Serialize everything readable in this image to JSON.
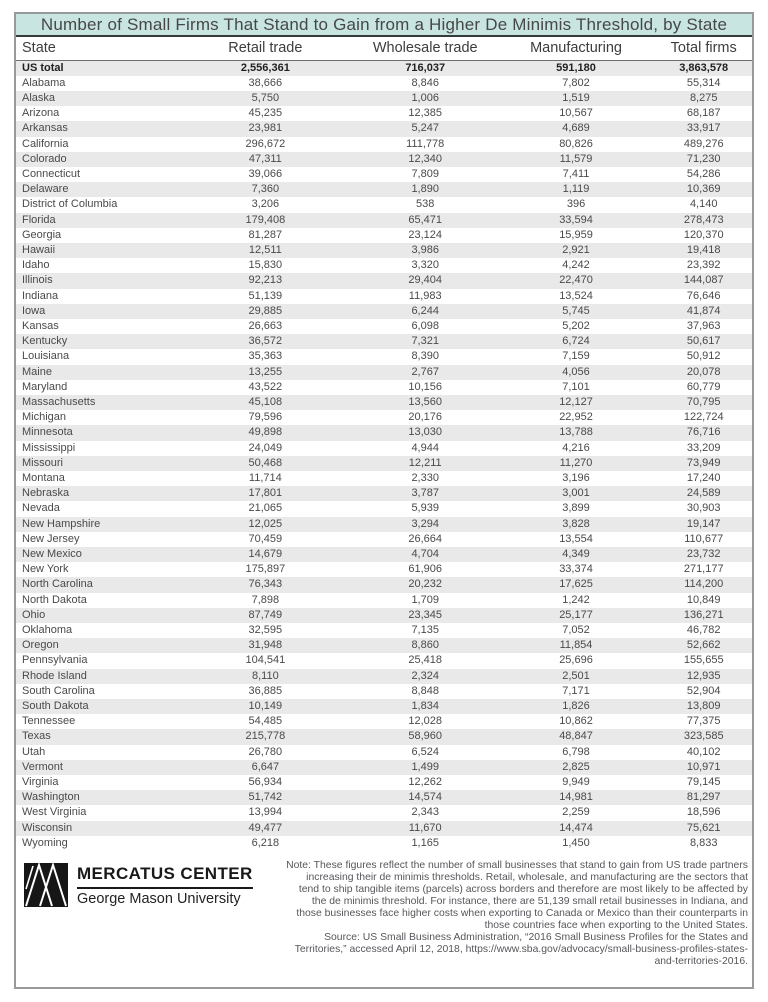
{
  "chart_data": {
    "type": "table",
    "title": "Number of Small Firms That Stand to Gain from a Higher De Minimis Threshold, by State",
    "columns": [
      "State",
      "Retail trade",
      "Wholesale trade",
      "Manufacturing",
      "Total firms"
    ],
    "rows": [
      [
        "US total",
        2556361,
        716037,
        591180,
        3863578
      ],
      [
        "Alabama",
        38666,
        8846,
        7802,
        55314
      ],
      [
        "Alaska",
        5750,
        1006,
        1519,
        8275
      ],
      [
        "Arizona",
        45235,
        12385,
        10567,
        68187
      ],
      [
        "Arkansas",
        23981,
        5247,
        4689,
        33917
      ],
      [
        "California",
        296672,
        111778,
        80826,
        489276
      ],
      [
        "Colorado",
        47311,
        12340,
        11579,
        71230
      ],
      [
        "Connecticut",
        39066,
        7809,
        7411,
        54286
      ],
      [
        "Delaware",
        7360,
        1890,
        1119,
        10369
      ],
      [
        "District of Columbia",
        3206,
        538,
        396,
        4140
      ],
      [
        "Florida",
        179408,
        65471,
        33594,
        278473
      ],
      [
        "Georgia",
        81287,
        23124,
        15959,
        120370
      ],
      [
        "Hawaii",
        12511,
        3986,
        2921,
        19418
      ],
      [
        "Idaho",
        15830,
        3320,
        4242,
        23392
      ],
      [
        "Illinois",
        92213,
        29404,
        22470,
        144087
      ],
      [
        "Indiana",
        51139,
        11983,
        13524,
        76646
      ],
      [
        "Iowa",
        29885,
        6244,
        5745,
        41874
      ],
      [
        "Kansas",
        26663,
        6098,
        5202,
        37963
      ],
      [
        "Kentucky",
        36572,
        7321,
        6724,
        50617
      ],
      [
        "Louisiana",
        35363,
        8390,
        7159,
        50912
      ],
      [
        "Maine",
        13255,
        2767,
        4056,
        20078
      ],
      [
        "Maryland",
        43522,
        10156,
        7101,
        60779
      ],
      [
        "Massachusetts",
        45108,
        13560,
        12127,
        70795
      ],
      [
        "Michigan",
        79596,
        20176,
        22952,
        122724
      ],
      [
        "Minnesota",
        49898,
        13030,
        13788,
        76716
      ],
      [
        "Mississippi",
        24049,
        4944,
        4216,
        33209
      ],
      [
        "Missouri",
        50468,
        12211,
        11270,
        73949
      ],
      [
        "Montana",
        11714,
        2330,
        3196,
        17240
      ],
      [
        "Nebraska",
        17801,
        3787,
        3001,
        24589
      ],
      [
        "Nevada",
        21065,
        5939,
        3899,
        30903
      ],
      [
        "New Hampshire",
        12025,
        3294,
        3828,
        19147
      ],
      [
        "New Jersey",
        70459,
        26664,
        13554,
        110677
      ],
      [
        "New Mexico",
        14679,
        4704,
        4349,
        23732
      ],
      [
        "New York",
        175897,
        61906,
        33374,
        271177
      ],
      [
        "North Carolina",
        76343,
        20232,
        17625,
        114200
      ],
      [
        "North Dakota",
        7898,
        1709,
        1242,
        10849
      ],
      [
        "Ohio",
        87749,
        23345,
        25177,
        136271
      ],
      [
        "Oklahoma",
        32595,
        7135,
        7052,
        46782
      ],
      [
        "Oregon",
        31948,
        8860,
        11854,
        52662
      ],
      [
        "Pennsylvania",
        104541,
        25418,
        25696,
        155655
      ],
      [
        "Rhode Island",
        8110,
        2324,
        2501,
        12935
      ],
      [
        "South Carolina",
        36885,
        8848,
        7171,
        52904
      ],
      [
        "South Dakota",
        10149,
        1834,
        1826,
        13809
      ],
      [
        "Tennessee",
        54485,
        12028,
        10862,
        77375
      ],
      [
        "Texas",
        215778,
        58960,
        48847,
        323585
      ],
      [
        "Utah",
        26780,
        6524,
        6798,
        40102
      ],
      [
        "Vermont",
        6647,
        1499,
        2825,
        10971
      ],
      [
        "Virginia",
        56934,
        12262,
        9949,
        79145
      ],
      [
        "Washington",
        51742,
        14574,
        14981,
        81297
      ],
      [
        "West Virginia",
        13994,
        2343,
        2259,
        18596
      ],
      [
        "Wisconsin",
        49477,
        11670,
        14474,
        75621
      ],
      [
        "Wyoming",
        6218,
        1165,
        1450,
        8833
      ]
    ],
    "total_row_label": "US total",
    "layout_hints": {
      "zebra_striping": true,
      "total_row_bold": true
    }
  },
  "footer": {
    "logo": {
      "org": "MERCATUS CENTER",
      "university": "George Mason University"
    },
    "note": "Note: These figures reflect the number of small businesses that stand to gain from US trade partners increasing their de minimis thresholds. Retail, wholesale, and manufacturing are the sectors that tend to ship tangible items (parcels) across borders and therefore are most likely to be affected by the de minimis threshold. For instance, there are 51,139 small retail businesses in Indiana, and those businesses face higher costs when exporting to Canada or Mexico than their counterparts in those countries face when exporting to the United States.",
    "source": "Source: US Small Business Administration, “2016 Small Business Profiles for the States and Territories,” accessed April 12, 2018, https://www.sba.gov/advocacy/small-business-profiles-states-and-territories-2016."
  },
  "colors": {
    "title_background": "#c8e5e2",
    "title_border": "#333b3b",
    "frame_border": "#97999b",
    "zebra_row": "#e9e9e9",
    "body_text": "#4a4a4a"
  }
}
